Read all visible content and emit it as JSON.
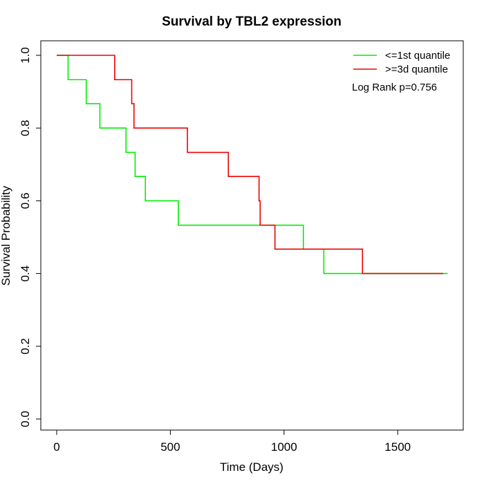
{
  "chart_data": {
    "type": "line",
    "title": "Survival by TBL2 expression",
    "xlabel": "Time (Days)",
    "ylabel": "Survival Probability",
    "xlim": [
      0,
      1720
    ],
    "ylim": [
      0,
      1
    ],
    "x_ticks": [
      0,
      500,
      1000,
      1500
    ],
    "y_ticks": [
      0.0,
      0.2,
      0.4,
      0.6,
      0.8,
      1.0
    ],
    "x_tick_labels": [
      "0",
      "500",
      "1000",
      "1500"
    ],
    "y_tick_labels": [
      "0.0",
      "0.2",
      "0.4",
      "0.6",
      "0.8",
      "1.0"
    ],
    "grid": false,
    "legend_position": "top-right",
    "annotation": "Log Rank p=0.756",
    "series": [
      {
        "name": "<=1st quantile",
        "color": "#00ee00",
        "step": true,
        "x": [
          0,
          50,
          130,
          190,
          305,
          345,
          390,
          535,
          1085,
          1175,
          1720
        ],
        "y": [
          1.0,
          0.933,
          0.867,
          0.8,
          0.733,
          0.667,
          0.6,
          0.533,
          0.467,
          0.4,
          0.4
        ]
      },
      {
        "name": ">=3d quantile",
        "color": "#ee0000",
        "step": true,
        "x": [
          0,
          255,
          330,
          340,
          575,
          755,
          890,
          895,
          960,
          1345,
          1700
        ],
        "y": [
          1.0,
          0.933,
          0.867,
          0.8,
          0.733,
          0.667,
          0.6,
          0.533,
          0.467,
          0.4,
          0.4
        ]
      }
    ]
  }
}
